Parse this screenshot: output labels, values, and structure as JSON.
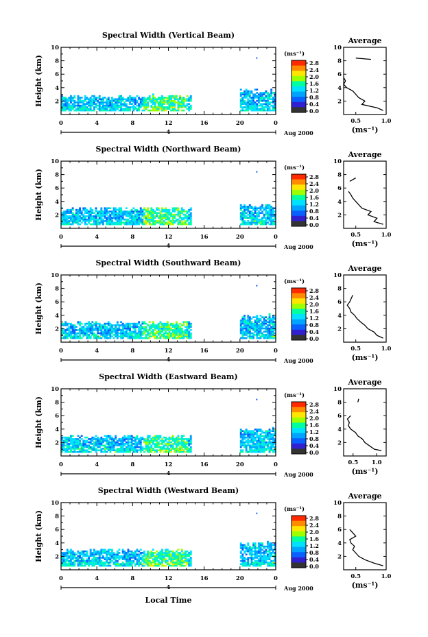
{
  "colorbar": {
    "unit_label": "(ms⁻¹)",
    "ticks": [
      "2.8",
      "2.4",
      "2.0",
      "1.6",
      "1.2",
      "0.8",
      "0.4",
      "0.0"
    ],
    "colors": [
      "#ff2a00",
      "#ff8c00",
      "#ffe600",
      "#9dff00",
      "#00ffa0",
      "#00e0ff",
      "#00a4ff",
      "#0a60ff",
      "#3020d0",
      "#333333"
    ]
  },
  "shared": {
    "date_label": "Aug 2000",
    "day_marker": "4",
    "xlabel": "Local Time",
    "ylabel": "Height (km)",
    "avg_title": "Average",
    "avg_xlabel": "(ms⁻¹)",
    "x_ticks": [
      "0",
      "4",
      "8",
      "12",
      "16",
      "20",
      "0"
    ],
    "y_ticks": [
      "10",
      "8",
      "6",
      "4",
      "2"
    ]
  },
  "chart_data": [
    {
      "type": "heatmap",
      "title": "Spectral Width (Vertical Beam)",
      "xlabel": "",
      "ylabel": "Height (km)",
      "xlim": [
        0,
        24
      ],
      "ylim": [
        0,
        10
      ],
      "data_blocks": [
        {
          "x": [
            0,
            14.5
          ],
          "y": [
            0.5,
            2.6
          ]
        },
        {
          "x": [
            20,
            24
          ],
          "y": [
            0.5,
            3.5
          ]
        }
      ],
      "average_profile": {
        "title": "Average",
        "xlim": [
          0.3,
          1.0
        ],
        "ylim": [
          0,
          10
        ],
        "x_ticks": [
          "0.5",
          "1.0"
        ],
        "heights": [
          0.6,
          1.0,
          1.5,
          2.0,
          2.5,
          3.0,
          3.5,
          4.0,
          4.5,
          5.0,
          5.5,
          8.2,
          8.4
        ],
        "values": [
          0.95,
          0.85,
          0.6,
          0.65,
          0.55,
          0.5,
          0.45,
          0.35,
          0.3,
          0.33,
          0.3,
          0.75,
          0.5
        ]
      }
    },
    {
      "type": "heatmap",
      "title": "Spectral Width (Northward Beam)",
      "xlabel": "",
      "ylabel": "Height (km)",
      "xlim": [
        0,
        24
      ],
      "ylim": [
        0,
        10
      ],
      "data_blocks": [
        {
          "x": [
            0,
            14.5
          ],
          "y": [
            0.5,
            2.8
          ]
        },
        {
          "x": [
            20,
            24
          ],
          "y": [
            0.5,
            3.2
          ]
        }
      ],
      "average_profile": {
        "title": "Average",
        "xlim": [
          0.3,
          1.0
        ],
        "ylim": [
          0,
          10
        ],
        "x_ticks": [
          "0.5",
          "1.0"
        ],
        "heights": [
          0.6,
          1.0,
          1.5,
          2.0,
          2.5,
          3.0,
          3.5,
          4.0,
          4.5,
          5.0,
          5.5,
          7.0,
          7.5
        ],
        "values": [
          0.95,
          0.8,
          0.85,
          0.7,
          0.75,
          0.6,
          0.55,
          0.5,
          0.45,
          0.42,
          0.38,
          0.4,
          0.5
        ]
      }
    },
    {
      "type": "heatmap",
      "title": "Spectral Width (Southward Beam)",
      "xlabel": "",
      "ylabel": "Height (km)",
      "xlim": [
        0,
        24
      ],
      "ylim": [
        0,
        10
      ],
      "data_blocks": [
        {
          "x": [
            0,
            14.5
          ],
          "y": [
            0.5,
            2.8
          ]
        },
        {
          "x": [
            20,
            24
          ],
          "y": [
            0.5,
            3.8
          ]
        }
      ],
      "average_profile": {
        "title": "Average",
        "xlim": [
          0.3,
          1.0
        ],
        "ylim": [
          0,
          10
        ],
        "x_ticks": [
          "0.5",
          "1.0"
        ],
        "heights": [
          0.6,
          1.0,
          1.5,
          2.0,
          2.5,
          3.0,
          3.5,
          4.0,
          4.5,
          5.0,
          5.5,
          6.0,
          7.0
        ],
        "values": [
          0.95,
          0.85,
          0.8,
          0.7,
          0.65,
          0.58,
          0.52,
          0.48,
          0.42,
          0.4,
          0.36,
          0.4,
          0.45
        ]
      }
    },
    {
      "type": "heatmap",
      "title": "Spectral Width (Eastward Beam)",
      "xlabel": "",
      "ylabel": "Height (km)",
      "xlim": [
        0,
        24
      ],
      "ylim": [
        0,
        10
      ],
      "data_blocks": [
        {
          "x": [
            0,
            14.5
          ],
          "y": [
            0.5,
            2.8
          ]
        },
        {
          "x": [
            20,
            24
          ],
          "y": [
            0.5,
            3.8
          ]
        }
      ],
      "average_profile": {
        "title": "Average",
        "xlim": [
          0.3,
          1.2
        ],
        "ylim": [
          0,
          10
        ],
        "x_ticks": [
          "0.5",
          "1.0"
        ],
        "heights": [
          0.8,
          1.0,
          1.5,
          2.0,
          2.5,
          3.0,
          3.5,
          4.0,
          4.5,
          5.0,
          5.5,
          6.0,
          8.0,
          8.5
        ],
        "values": [
          1.1,
          0.95,
          0.85,
          0.75,
          0.7,
          0.6,
          0.55,
          0.45,
          0.4,
          0.42,
          0.38,
          0.45,
          0.6,
          0.62
        ]
      }
    },
    {
      "type": "heatmap",
      "title": "Spectral Width (Westward Beam)",
      "xlabel": "Local Time",
      "ylabel": "Height (km)",
      "xlim": [
        0,
        24
      ],
      "ylim": [
        0,
        10
      ],
      "data_blocks": [
        {
          "x": [
            0,
            14.5
          ],
          "y": [
            0.5,
            2.8
          ]
        },
        {
          "x": [
            20,
            24
          ],
          "y": [
            0.5,
            3.8
          ]
        }
      ],
      "average_profile": {
        "title": "Average",
        "xlim": [
          0.3,
          1.0
        ],
        "ylim": [
          0,
          10
        ],
        "x_ticks": [
          "0.5",
          "1.0"
        ],
        "heights": [
          0.6,
          1.0,
          1.5,
          2.0,
          2.5,
          3.0,
          3.5,
          4.0,
          4.5,
          5.0,
          5.5,
          6.0
        ],
        "values": [
          0.95,
          0.8,
          0.65,
          0.55,
          0.5,
          0.45,
          0.48,
          0.42,
          0.4,
          0.5,
          0.45,
          0.4
        ]
      }
    }
  ]
}
